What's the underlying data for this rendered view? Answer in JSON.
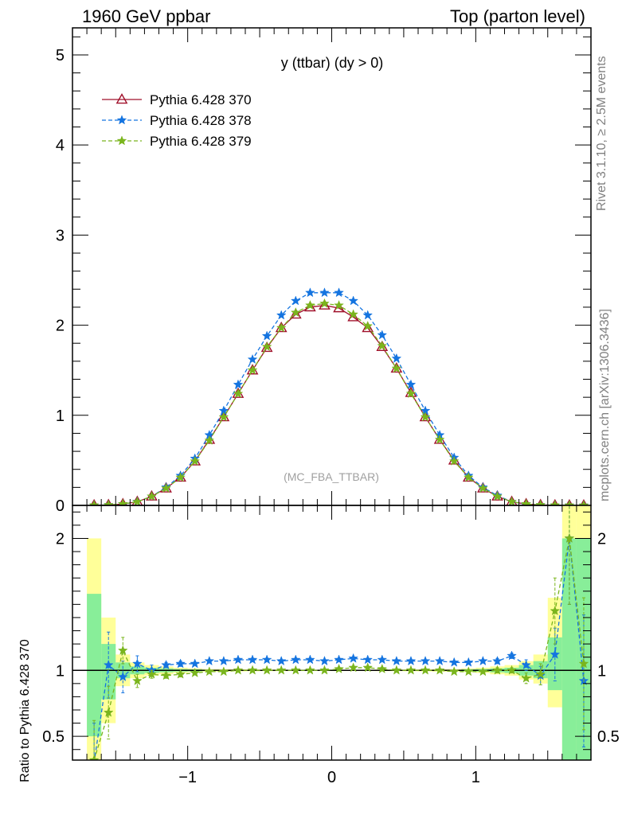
{
  "header": {
    "left": "1960 GeV ppbar",
    "right": "Top (parton level)"
  },
  "side": {
    "rivet": "Rivet 3.1.10, ≥ 2.5M events",
    "mcplots": "mcplots.cern.ch [arXiv:1306.3436]"
  },
  "ratio_ylabel": "Ratio to Pythia 6.428 370",
  "colors": {
    "s370": "#a0102a",
    "s378": "#1474e0",
    "s379": "#7ab51d",
    "band_yellow": "#ffff99",
    "band_green": "#88ee99"
  },
  "chart_data": [
    {
      "type": "line",
      "title": "y (ttbar) (dy > 0)",
      "annotation": "(MC_FBA_TTBAR)",
      "xlim": [
        -1.8,
        1.8
      ],
      "ylim": [
        0,
        5.3
      ],
      "yticks": [
        {
          "v": 0,
          "label": "0"
        },
        {
          "v": 1,
          "label": "1"
        },
        {
          "v": 2,
          "label": "2"
        },
        {
          "v": 3,
          "label": "3"
        },
        {
          "v": 4,
          "label": "4"
        },
        {
          "v": 5,
          "label": "5"
        }
      ],
      "legend_position": "top-left",
      "x": [
        -1.65,
        -1.55,
        -1.45,
        -1.35,
        -1.25,
        -1.15,
        -1.05,
        -0.95,
        -0.85,
        -0.75,
        -0.65,
        -0.55,
        -0.45,
        -0.35,
        -0.25,
        -0.15,
        -0.05,
        0.05,
        0.15,
        0.25,
        0.35,
        0.45,
        0.55,
        0.65,
        0.75,
        0.85,
        0.95,
        1.05,
        1.15,
        1.25,
        1.35,
        1.45,
        1.55,
        1.65,
        1.75
      ],
      "series": [
        {
          "name": "Pythia 6.428 370",
          "marker": "triangle",
          "dash": "solid",
          "values": [
            0.002,
            0.005,
            0.015,
            0.04,
            0.1,
            0.19,
            0.31,
            0.49,
            0.73,
            0.98,
            1.24,
            1.5,
            1.75,
            1.97,
            2.12,
            2.2,
            2.22,
            2.19,
            2.09,
            1.97,
            1.76,
            1.52,
            1.25,
            0.98,
            0.73,
            0.5,
            0.31,
            0.19,
            0.1,
            0.04,
            0.015,
            0.005,
            0.002,
            0.001,
            0.0005
          ]
        },
        {
          "name": "Pythia 6.428 378",
          "marker": "star",
          "dash": "dashed",
          "values": [
            0.002,
            0.005,
            0.014,
            0.042,
            0.1,
            0.2,
            0.33,
            0.52,
            0.78,
            1.05,
            1.34,
            1.62,
            1.88,
            2.11,
            2.27,
            2.36,
            2.36,
            2.36,
            2.27,
            2.11,
            1.89,
            1.63,
            1.34,
            1.05,
            0.78,
            0.53,
            0.33,
            0.2,
            0.11,
            0.04,
            0.014,
            0.005,
            0.002,
            0.001,
            0.0005
          ]
        },
        {
          "name": "Pythia 6.428 379",
          "marker": "star",
          "dash": "dashed",
          "values": [
            0.002,
            0.005,
            0.016,
            0.04,
            0.1,
            0.19,
            0.31,
            0.49,
            0.72,
            0.98,
            1.24,
            1.5,
            1.76,
            1.97,
            2.14,
            2.22,
            2.24,
            2.22,
            2.12,
            1.99,
            1.77,
            1.52,
            1.24,
            0.98,
            0.73,
            0.49,
            0.31,
            0.19,
            0.1,
            0.04,
            0.015,
            0.005,
            0.002,
            0.001,
            0.0005
          ]
        }
      ]
    },
    {
      "type": "line",
      "ylabel": "Ratio to Pythia 6.428 370",
      "xlim": [
        -1.8,
        1.8
      ],
      "ylim": [
        0.32,
        2.25
      ],
      "xticks": [
        {
          "v": -1,
          "label": "−1"
        },
        {
          "v": 0,
          "label": "0"
        },
        {
          "v": 1,
          "label": "1"
        }
      ],
      "yticks": [
        {
          "v": 0.5,
          "label": "0.5"
        },
        {
          "v": 1,
          "label": "1"
        },
        {
          "v": 2,
          "label": "2"
        }
      ],
      "reference_line": 1,
      "band_edges": [
        -1.7,
        -1.6,
        -1.5,
        -1.4,
        -1.3,
        -1.2,
        -1.1,
        -1.0,
        -0.9,
        -0.8,
        -0.7,
        -0.6,
        -0.5,
        -0.4,
        -0.3,
        -0.2,
        -0.1,
        0.0,
        0.1,
        0.2,
        0.3,
        0.4,
        0.5,
        0.6,
        0.7,
        0.8,
        0.9,
        1.0,
        1.1,
        1.2,
        1.3,
        1.4,
        1.5,
        1.6,
        1.7,
        1.8
      ],
      "band_yellow": [
        [
          0.32,
          2.0
        ],
        [
          0.6,
          1.4
        ],
        [
          0.88,
          1.12
        ],
        [
          0.94,
          1.06
        ],
        [
          0.96,
          1.04
        ],
        [
          0.97,
          1.03
        ],
        [
          0.98,
          1.02
        ],
        [
          0.985,
          1.015
        ],
        [
          0.99,
          1.01
        ],
        [
          0.99,
          1.01
        ],
        [
          0.992,
          1.008
        ],
        [
          0.993,
          1.007
        ],
        [
          0.994,
          1.006
        ],
        [
          0.994,
          1.006
        ],
        [
          0.995,
          1.005
        ],
        [
          0.995,
          1.005
        ],
        [
          0.995,
          1.005
        ],
        [
          0.995,
          1.005
        ],
        [
          0.995,
          1.005
        ],
        [
          0.995,
          1.005
        ],
        [
          0.994,
          1.006
        ],
        [
          0.994,
          1.006
        ],
        [
          0.993,
          1.007
        ],
        [
          0.992,
          1.008
        ],
        [
          0.99,
          1.01
        ],
        [
          0.99,
          1.01
        ],
        [
          0.985,
          1.015
        ],
        [
          0.98,
          1.02
        ],
        [
          0.97,
          1.03
        ],
        [
          0.96,
          1.04
        ],
        [
          0.93,
          1.07
        ],
        [
          0.9,
          1.12
        ],
        [
          0.72,
          1.55
        ],
        [
          0.32,
          2.25
        ],
        [
          0.32,
          2.25
        ]
      ],
      "band_green": [
        [
          0.5,
          1.58
        ],
        [
          0.78,
          1.2
        ],
        [
          0.94,
          1.06
        ],
        [
          0.97,
          1.03
        ],
        [
          0.98,
          1.02
        ],
        [
          0.985,
          1.015
        ],
        [
          0.99,
          1.01
        ],
        [
          0.992,
          1.008
        ],
        [
          0.995,
          1.005
        ],
        [
          0.995,
          1.005
        ],
        [
          0.996,
          1.004
        ],
        [
          0.996,
          1.004
        ],
        [
          0.997,
          1.003
        ],
        [
          0.997,
          1.003
        ],
        [
          0.997,
          1.003
        ],
        [
          0.998,
          1.002
        ],
        [
          0.998,
          1.002
        ],
        [
          0.998,
          1.002
        ],
        [
          0.998,
          1.002
        ],
        [
          0.997,
          1.003
        ],
        [
          0.997,
          1.003
        ],
        [
          0.997,
          1.003
        ],
        [
          0.996,
          1.004
        ],
        [
          0.996,
          1.004
        ],
        [
          0.995,
          1.005
        ],
        [
          0.995,
          1.005
        ],
        [
          0.992,
          1.008
        ],
        [
          0.99,
          1.01
        ],
        [
          0.985,
          1.015
        ],
        [
          0.98,
          1.02
        ],
        [
          0.96,
          1.04
        ],
        [
          0.94,
          1.07
        ],
        [
          0.85,
          1.25
        ],
        [
          0.32,
          2.0
        ],
        [
          0.32,
          2.0
        ]
      ],
      "x": [
        -1.65,
        -1.55,
        -1.45,
        -1.35,
        -1.25,
        -1.15,
        -1.05,
        -0.95,
        -0.85,
        -0.75,
        -0.65,
        -0.55,
        -0.45,
        -0.35,
        -0.25,
        -0.15,
        -0.05,
        0.05,
        0.15,
        0.25,
        0.35,
        0.45,
        0.55,
        0.65,
        0.75,
        0.85,
        0.95,
        1.05,
        1.15,
        1.25,
        1.35,
        1.45,
        1.55,
        1.65,
        1.75
      ],
      "series": [
        {
          "name": "Pythia 6.428 378",
          "values": [
            0.3,
            1.04,
            0.95,
            1.05,
            1.0,
            1.04,
            1.05,
            1.05,
            1.07,
            1.07,
            1.08,
            1.08,
            1.08,
            1.07,
            1.08,
            1.08,
            1.07,
            1.08,
            1.09,
            1.08,
            1.08,
            1.07,
            1.07,
            1.07,
            1.07,
            1.06,
            1.06,
            1.07,
            1.07,
            1.11,
            1.04,
            0.96,
            1.12,
            2.0,
            0.92
          ],
          "err": [
            0.3,
            0.25,
            0.12,
            0.06,
            0.04,
            0.02,
            0.02,
            0.01,
            0.01,
            0.01,
            0.01,
            0.01,
            0.01,
            0.01,
            0.01,
            0.01,
            0.01,
            0.01,
            0.01,
            0.01,
            0.01,
            0.01,
            0.01,
            0.01,
            0.01,
            0.01,
            0.01,
            0.01,
            0.02,
            0.02,
            0.04,
            0.07,
            0.2,
            0.5,
            0.5
          ]
        },
        {
          "name": "Pythia 6.428 379",
          "values": [
            0.32,
            0.68,
            1.15,
            0.92,
            0.97,
            0.96,
            0.97,
            0.98,
            0.99,
            0.99,
            1.0,
            1.0,
            1.0,
            1.0,
            1.0,
            1.0,
            1.0,
            1.01,
            1.02,
            1.02,
            1.01,
            1.0,
            1.0,
            1.0,
            1.0,
            0.99,
            0.99,
            0.99,
            1.0,
            1.0,
            0.94,
            0.97,
            1.45,
            2.0,
            1.05
          ],
          "err": [
            0.3,
            0.2,
            0.1,
            0.05,
            0.03,
            0.02,
            0.02,
            0.01,
            0.01,
            0.01,
            0.01,
            0.01,
            0.01,
            0.01,
            0.01,
            0.01,
            0.01,
            0.01,
            0.01,
            0.01,
            0.01,
            0.01,
            0.01,
            0.01,
            0.01,
            0.01,
            0.01,
            0.01,
            0.02,
            0.02,
            0.04,
            0.08,
            0.25,
            0.5,
            0.5
          ]
        }
      ]
    }
  ]
}
